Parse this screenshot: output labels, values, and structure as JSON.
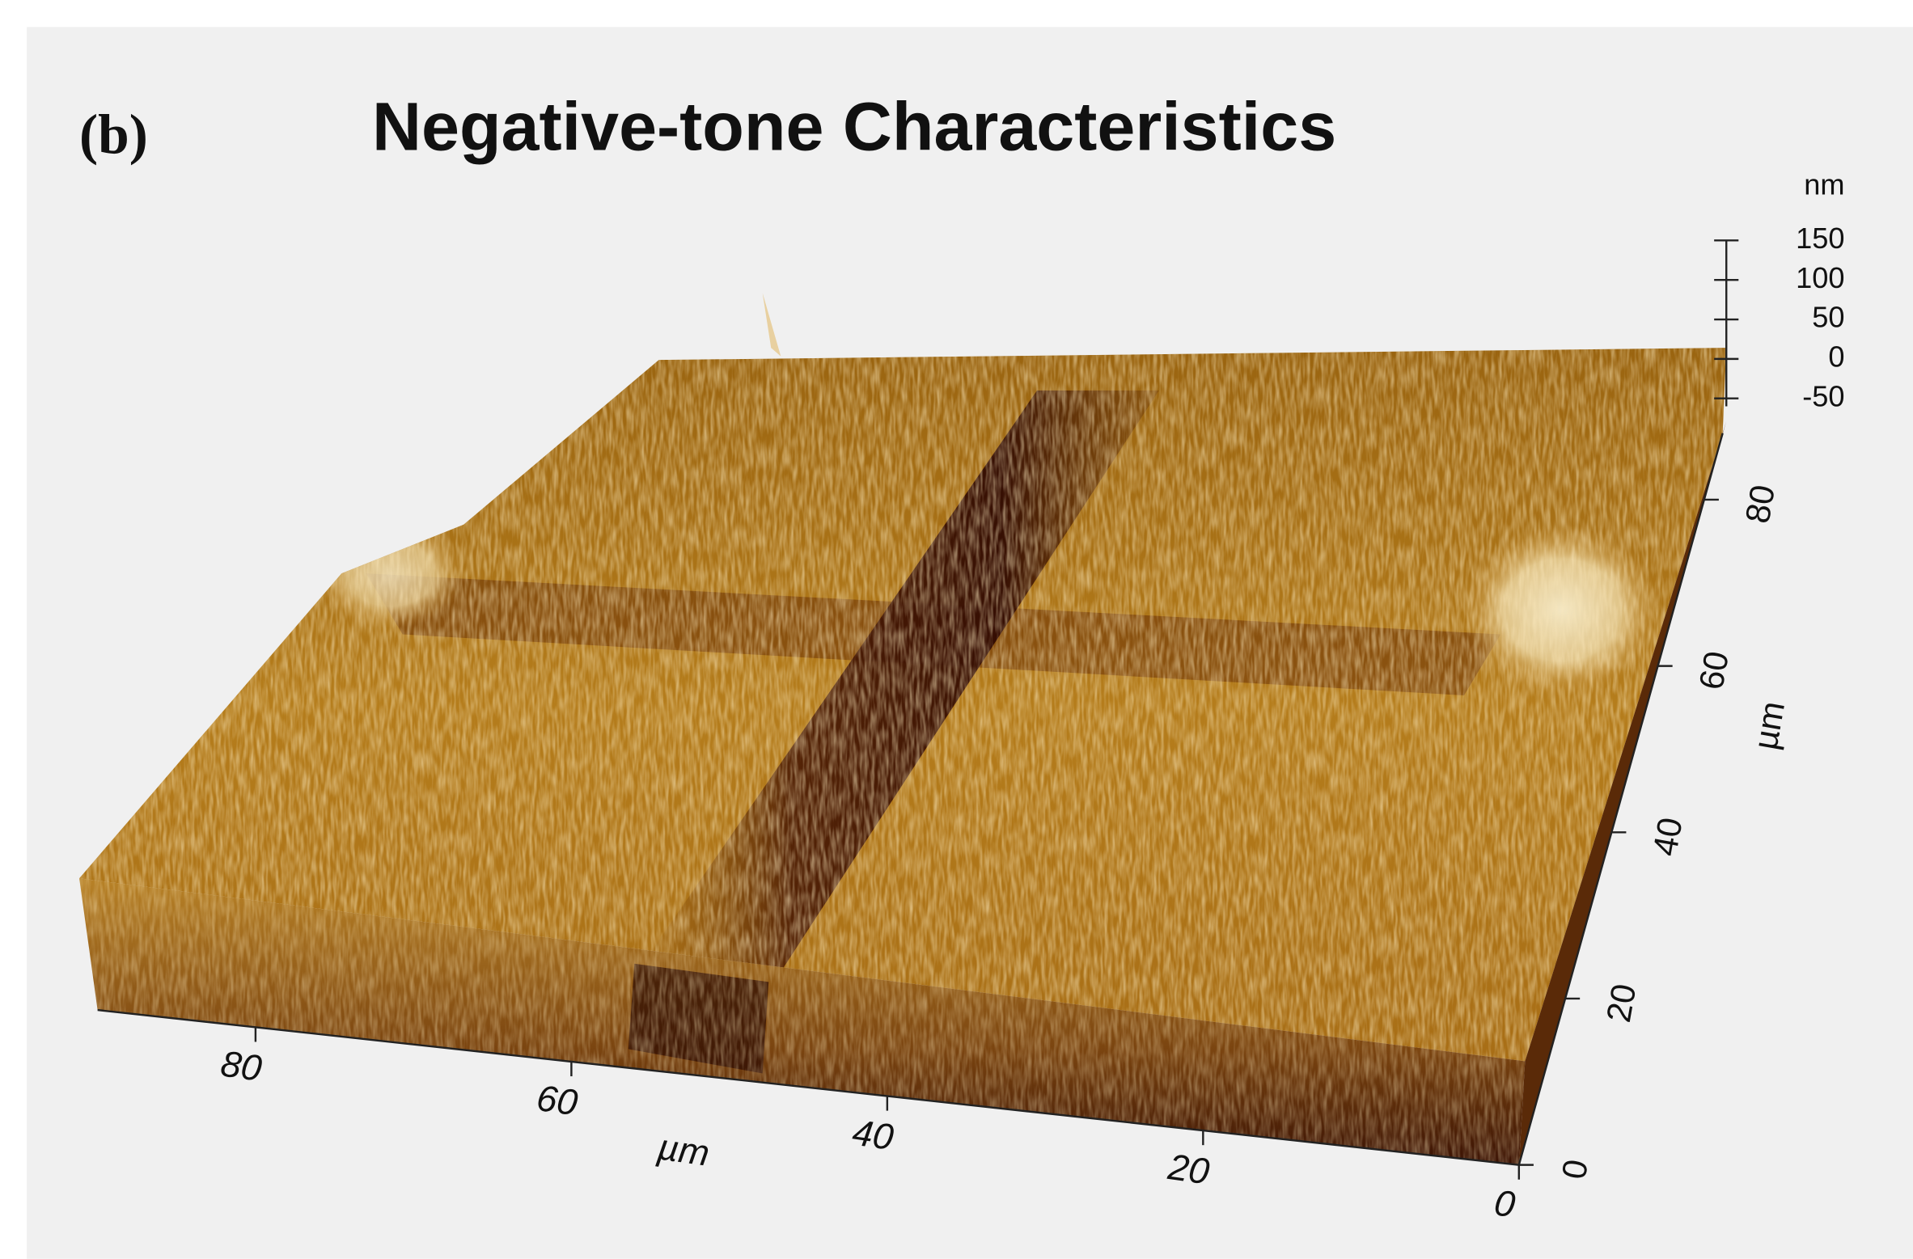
{
  "chart_data": {
    "type": "surface3d",
    "panel_label": "(b)",
    "title": "Negative-tone Characteristics",
    "x_label": "µm",
    "xlim": [
      0,
      90
    ],
    "xticks": [
      80,
      60,
      40,
      20,
      0
    ],
    "y_label": "µm",
    "ylim": [
      0,
      88
    ],
    "yticks": [
      0,
      20,
      40,
      60,
      80
    ],
    "z_label": "nm",
    "zlim": [
      -60,
      150
    ],
    "zticks": [
      150,
      100,
      50,
      0,
      -50
    ]
  }
}
